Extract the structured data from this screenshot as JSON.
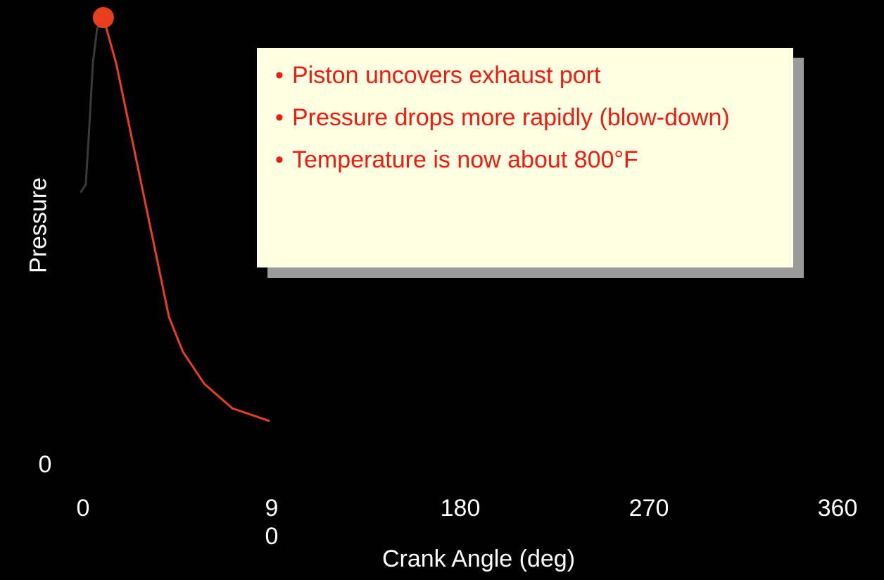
{
  "chart_data": {
    "type": "line",
    "xlabel": "Crank Angle (deg)",
    "ylabel": "Pressure",
    "xlim": [
      0,
      360
    ],
    "xticks": [
      0,
      90,
      180,
      270,
      360
    ],
    "ylim": [
      0,
      100
    ],
    "yticks": [
      0
    ],
    "series": [
      {
        "color": "#3a3a3a",
        "x": [
          -1,
          1.3,
          3,
          4.7,
          6.7,
          9.7
        ],
        "values": [
          61,
          62.7,
          75.6,
          89.8,
          97.6,
          100
        ]
      },
      {
        "color": "#e8401c",
        "x": [
          9.7,
          15.8,
          24.2,
          32.6,
          41,
          47.7,
          57.8,
          71.2,
          88.6
        ],
        "values": [
          100,
          89.8,
          70.9,
          52,
          33,
          25.2,
          18.1,
          12.6,
          9.8
        ]
      }
    ],
    "annotations": [
      "Piston uncovers exhaust port",
      "Pressure drops more rapidly (blow-down)",
      "Temperature is now about 800°F"
    ]
  }
}
